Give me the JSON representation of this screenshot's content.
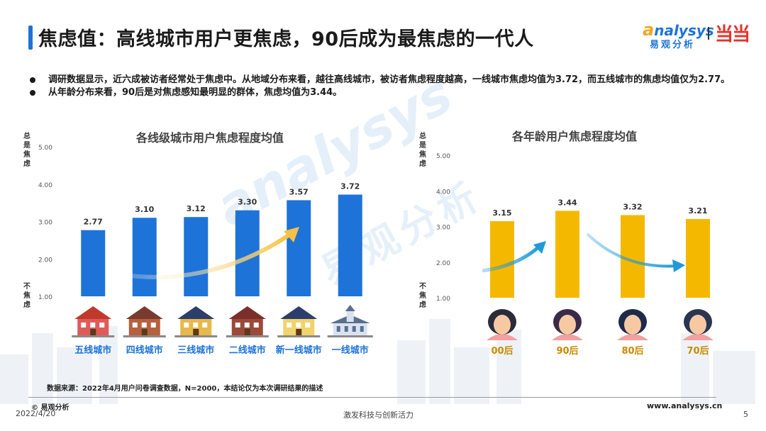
{
  "title": "焦虑值：高线城市用户更焦虑，90后成为最焦虑的一代人",
  "logo": {
    "word_a": "a",
    "word_rest": "nalysys",
    "cn": "易观分析",
    "partner": "当当"
  },
  "bullets": [
    "调研数据显示，近六成被访者经常处于焦虑中。从地域分布来看，越往高线城市，被访者焦虑程度越高，一线城市焦虑均值为3.72，而五线城市的焦虑均值仅为2.77。",
    "从年龄分布来看，90后是对焦虑感知最明显的群体，焦虑均值为3.44。"
  ],
  "axis_labels": {
    "top": "总是焦虑",
    "bottom": "不焦虑"
  },
  "watermark": {
    "en": "analysys",
    "cn": "易观分析"
  },
  "chart_data": [
    {
      "type": "bar",
      "title": "各线级城市用户焦虑程度均值",
      "categories": [
        "五线城市",
        "四线城市",
        "三线城市",
        "二线城市",
        "新一线城市",
        "一线城市"
      ],
      "values": [
        2.77,
        3.1,
        3.12,
        3.3,
        3.57,
        3.72
      ],
      "value_labels": [
        "2.77",
        "3.10",
        "3.12",
        "3.30",
        "3.57",
        "3.72"
      ],
      "yticks": [
        "1.00",
        "2.00",
        "3.00",
        "4.00",
        "5.00"
      ],
      "ylim": [
        1,
        5
      ],
      "ylabel_top": "总是焦虑",
      "ylabel_bottom": "不焦虑",
      "grid": false,
      "bar_color": "#1e73d8",
      "category_color": "#1e73d8",
      "icons": [
        "house-icon",
        "house-icon",
        "house-icon",
        "townhouse-icon",
        "house-icon",
        "church-icon"
      ]
    },
    {
      "type": "bar",
      "title": "各年龄用户焦虑程度均值",
      "categories": [
        "00后",
        "90后",
        "80后",
        "70后"
      ],
      "values": [
        3.15,
        3.44,
        3.32,
        3.21
      ],
      "value_labels": [
        "3.15",
        "3.44",
        "3.32",
        "3.21"
      ],
      "yticks": [
        "1.00",
        "2.00",
        "3.00",
        "4.00",
        "5.00"
      ],
      "ylim": [
        1,
        5
      ],
      "ylabel_top": "总是焦虑",
      "ylabel_bottom": "不焦虑",
      "grid": false,
      "bar_color": "#f5b800",
      "category_color": "#c98a00",
      "icons": [
        "person-icon",
        "person-icon",
        "person-icon",
        "person-icon"
      ]
    }
  ],
  "footer": {
    "source": "数据来源：2022年4月用户问卷调查数据，N=2000，本结论仅为本次调研结果的描述",
    "copyright": "© 易观分析",
    "date": "2022/4/20",
    "slogan": "激发科技与创新活力",
    "website": "www.analysys.cn",
    "page": "5"
  }
}
